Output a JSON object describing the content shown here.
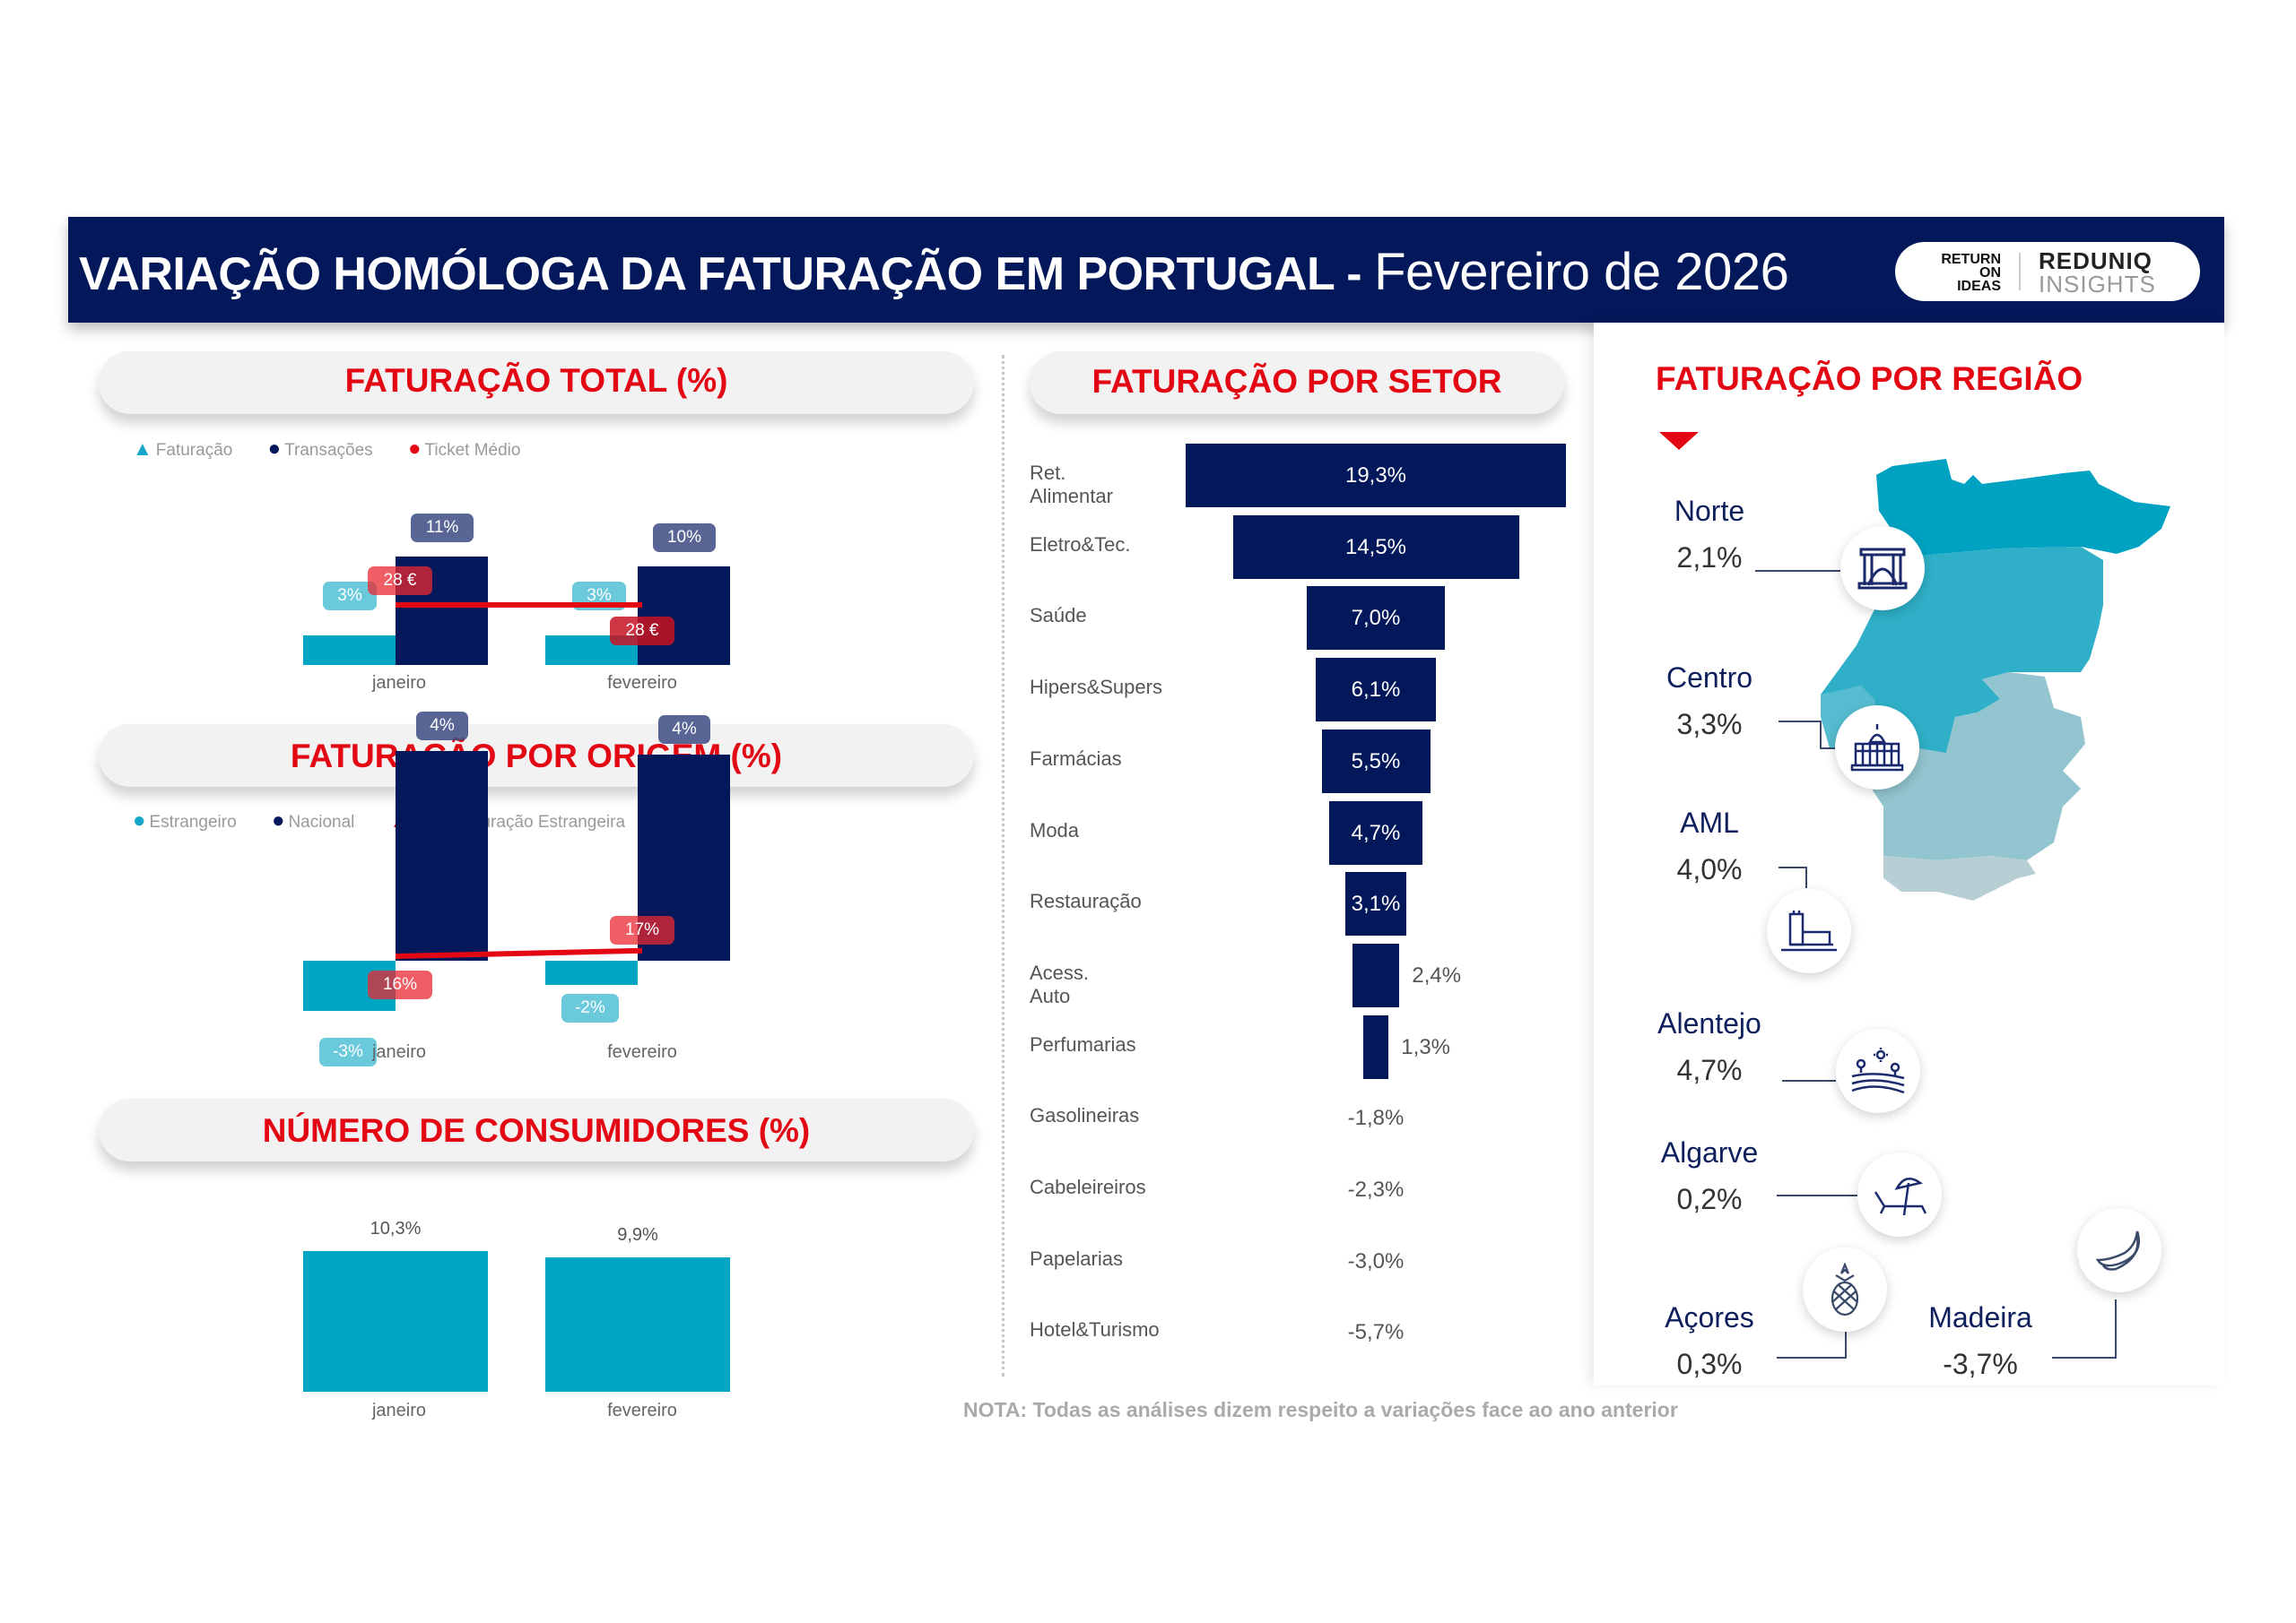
{
  "header": {
    "title": "VARIAÇÃO HOMÓLOGA DA FATURAÇÃO EM PORTUGAL -",
    "subtitle": "Fevereiro de 2026",
    "logo_left": [
      "RETURN",
      "ON",
      "IDEAS"
    ],
    "logo_right_top": "REDUNIQ",
    "logo_right_bottom": "INSIGHTS"
  },
  "colors": {
    "navy": "#02185a",
    "cyan": "#00a5c4",
    "red": "#e30613",
    "norte": "#00a2c2",
    "centro": "#2fb0c8",
    "alentejo": "#92c5cf",
    "algarve": "#b7cfd4"
  },
  "note": "NOTA: Todas as análises dizem respeito a variações face ao ano anterior",
  "chart_data": [
    {
      "id": "faturacao_total",
      "type": "bar",
      "title": "FATURAÇÃO TOTAL (%)",
      "categories": [
        "janeiro",
        "fevereiro"
      ],
      "legend": [
        "Faturação",
        "Transações",
        "Ticket Médio"
      ],
      "series": [
        {
          "name": "Faturação",
          "values": [
            3,
            3
          ],
          "labels": [
            "3%",
            "3%"
          ]
        },
        {
          "name": "Transações",
          "values": [
            11,
            10
          ],
          "labels": [
            "11%",
            "10%"
          ]
        },
        {
          "name": "Ticket Médio",
          "type": "line",
          "values": [
            28,
            28
          ],
          "labels": [
            "28 €",
            "28 €"
          ]
        }
      ]
    },
    {
      "id": "faturacao_origem",
      "type": "bar",
      "title": "FATURAÇÃO POR ORIGEM (%)",
      "categories": [
        "janeiro",
        "fevereiro"
      ],
      "legend": [
        "Estrangeiro",
        "Nacional",
        "Peso Faturação Estrangeira"
      ],
      "series": [
        {
          "name": "Estrangeiro",
          "values": [
            -3,
            -2
          ],
          "labels": [
            "-3%",
            "-2%"
          ]
        },
        {
          "name": "Nacional",
          "values": [
            4,
            4
          ],
          "labels": [
            "4%",
            "4%"
          ]
        },
        {
          "name": "Peso Faturação Estrangeira",
          "type": "line",
          "values": [
            16,
            17
          ],
          "labels": [
            "16%",
            "17%"
          ]
        }
      ]
    },
    {
      "id": "numero_consumidores",
      "type": "bar",
      "title": "NÚMERO DE CONSUMIDORES (%)",
      "categories": [
        "janeiro",
        "fevereiro"
      ],
      "values": [
        10.3,
        9.9
      ],
      "labels": [
        "10,3%",
        "9,9%"
      ]
    },
    {
      "id": "faturacao_setor",
      "type": "bar",
      "orientation": "funnel",
      "title": "FATURAÇÃO POR SETOR",
      "categories": [
        "Ret. Alimentar",
        "Eletro&Tec.",
        "Saúde",
        "Hipers&Supers",
        "Farmácias",
        "Moda",
        "Restauração",
        "Acess. Auto",
        "Perfumarias",
        "Gasolineiras",
        "Cabeleireiros",
        "Papelarias",
        "Hotel&Turismo"
      ],
      "values": [
        19.3,
        14.5,
        7.0,
        6.1,
        5.5,
        4.7,
        3.1,
        2.4,
        1.3,
        -1.8,
        -2.3,
        -3.0,
        -5.7
      ],
      "labels": [
        "19,3%",
        "14,5%",
        "7,0%",
        "6,1%",
        "5,5%",
        "4,7%",
        "3,1%",
        "2,4%",
        "1,3%",
        "-1,8%",
        "-2,3%",
        "-3,0%",
        "-5,7%"
      ]
    },
    {
      "id": "faturacao_regiao",
      "type": "table",
      "title": "FATURAÇÃO POR REGIÃO",
      "categories": [
        "Norte",
        "Centro",
        "AML",
        "Alentejo",
        "Algarve",
        "Açores",
        "Madeira"
      ],
      "values": [
        2.1,
        3.3,
        4.0,
        4.7,
        0.2,
        0.3,
        -3.7
      ],
      "labels": [
        "2,1%",
        "3,3%",
        "4,0%",
        "4,7%",
        "0,2%",
        "0,3%",
        "-3,7%"
      ],
      "icons": [
        "bridge-icon",
        "palace-icon",
        "tower-icon",
        "landscape-icon",
        "beach-icon",
        "pineapple-icon",
        "banana-icon"
      ]
    }
  ]
}
